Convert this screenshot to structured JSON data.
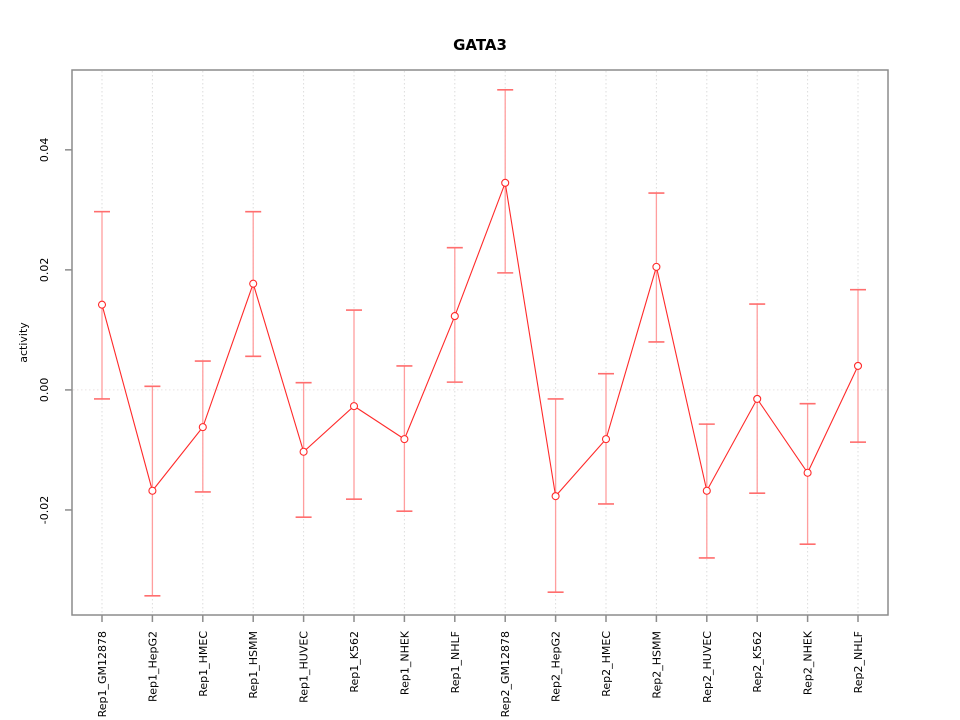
{
  "chart_data": {
    "type": "line",
    "title": "GATA3",
    "xlabel": "",
    "ylabel": "activity",
    "legend": "none",
    "grid": "vertical dotted gridline at every category; light dotted horizontal line at y=0",
    "ylim": [
      -0.0375,
      0.0533
    ],
    "yticks": [
      -0.02,
      0,
      0.02,
      0.04
    ],
    "ytick_labels": [
      "-0.02",
      "0.00",
      "0.02",
      "0.04"
    ],
    "categories": [
      "Rep1_GM12878",
      "Rep1_HepG2",
      "Rep1_HMEC",
      "Rep1_HSMM",
      "Rep1_HUVEC",
      "Rep1_K562",
      "Rep1_NHEK",
      "Rep1_NHLF",
      "Rep2_GM12878",
      "Rep2_HepG2",
      "Rep2_HMEC",
      "Rep2_HSMM",
      "Rep2_HUVEC",
      "Rep2_K562",
      "Rep2_NHEK",
      "Rep2_NHLF"
    ],
    "series": [
      {
        "name": "activity",
        "marker": "open-circle",
        "values": [
          0.0142,
          -0.0168,
          -0.0062,
          0.0177,
          -0.0103,
          -0.0027,
          -0.0082,
          0.0123,
          0.0345,
          -0.0177,
          -0.0082,
          0.0205,
          -0.0168,
          -0.0015,
          -0.0138,
          0.004
        ],
        "err_high": [
          0.0297,
          0.0006,
          0.0048,
          0.0297,
          0.0012,
          0.0133,
          0.004,
          0.0237,
          0.05,
          -0.0015,
          0.0027,
          0.0328,
          -0.0057,
          0.0143,
          -0.0023,
          0.0167
        ],
        "err_low": [
          -0.0015,
          -0.0343,
          -0.017,
          0.0056,
          -0.0212,
          -0.0182,
          -0.0202,
          0.0013,
          0.0195,
          -0.0337,
          -0.019,
          0.008,
          -0.028,
          -0.0172,
          -0.0257,
          -0.0087
        ]
      }
    ],
    "colors": {
      "line": "#ff2a2a",
      "point_stroke": "#ff2a2a",
      "point_fill": "#ffffff",
      "error_stem": "#ff9e9e",
      "error_cap": "#ff6e6e",
      "gridline": "#dcdcdc",
      "zero_line": "#e9e2e2",
      "axis_box": "#8c8c8c",
      "text": "#000000"
    }
  }
}
